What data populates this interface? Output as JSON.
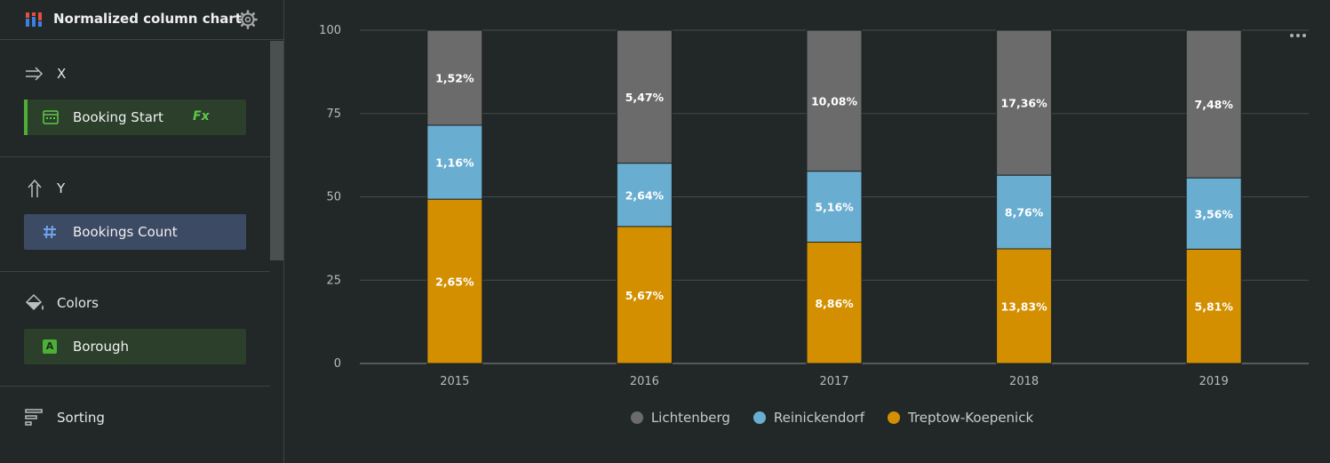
{
  "sidebar": {
    "chart_type": "Normalized column chart",
    "sections": {
      "x": {
        "title": "X",
        "field": "Booking Start",
        "formula_badge": "Fx"
      },
      "y": {
        "title": "Y",
        "field": "Bookings Count"
      },
      "colors": {
        "title": "Colors",
        "field": "Borough",
        "type_badge": "A"
      },
      "sorting": {
        "title": "Sorting"
      }
    }
  },
  "colors": {
    "Lichtenberg": "#6b6b6b",
    "Reinickendorf": "#69aed0",
    "Treptow-Koepenick": "#d38f00",
    "accent_green": "#4caf36",
    "field_blue": "#3d4a63"
  },
  "chart_data": {
    "type": "bar",
    "stacked": true,
    "normalized": true,
    "categories": [
      "2015",
      "2016",
      "2017",
      "2018",
      "2019"
    ],
    "ylim": [
      0,
      100
    ],
    "yticks": [
      "0",
      "25",
      "50",
      "75",
      "100"
    ],
    "series": [
      {
        "name": "Treptow-Koepenick",
        "values": [
          49.3,
          41.1,
          36.4,
          34.4,
          34.3
        ],
        "labels": [
          "2,65%",
          "5,67%",
          "8,86%",
          "13,83%",
          "5,81%"
        ]
      },
      {
        "name": "Reinickendorf",
        "values": [
          22.2,
          19.0,
          21.3,
          22.1,
          21.4
        ],
        "labels": [
          "1,16%",
          "2,64%",
          "5,16%",
          "8,76%",
          "3,56%"
        ]
      },
      {
        "name": "Lichtenberg",
        "values": [
          28.5,
          39.9,
          42.3,
          43.5,
          44.3
        ],
        "labels": [
          "1,52%",
          "5,47%",
          "10,08%",
          "17,36%",
          "7,48%"
        ]
      }
    ],
    "legend": [
      "Lichtenberg",
      "Reinickendorf",
      "Treptow-Koepenick"
    ],
    "legend_position": "bottom-center"
  }
}
